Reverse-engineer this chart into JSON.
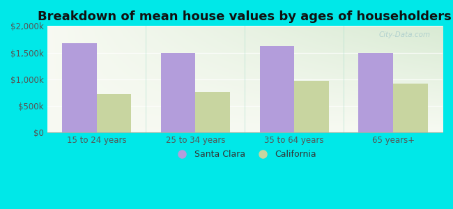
{
  "title": "Breakdown of mean house values by ages of householders",
  "categories": [
    "15 to 24 years",
    "25 to 34 years",
    "35 to 64 years",
    "65 years+"
  ],
  "santa_clara_values": [
    1680000,
    1490000,
    1620000,
    1490000
  ],
  "california_values": [
    720000,
    760000,
    970000,
    920000
  ],
  "santa_clara_color": "#b39ddb",
  "california_color": "#c8d5a0",
  "background_color": "#00e8e8",
  "plot_bg_top": "#d6ead6",
  "plot_bg_bottom": "#f5faf0",
  "ylim": [
    0,
    2000000
  ],
  "yticks": [
    0,
    500000,
    1000000,
    1500000,
    2000000
  ],
  "ytick_labels": [
    "$0",
    "$500k",
    "$1,000k",
    "$1,500k",
    "$2,000k"
  ],
  "legend_labels": [
    "Santa Clara",
    "California"
  ],
  "title_fontsize": 13,
  "tick_fontsize": 8.5,
  "legend_fontsize": 9,
  "bar_width": 0.35,
  "watermark_text": "City-Data.com"
}
